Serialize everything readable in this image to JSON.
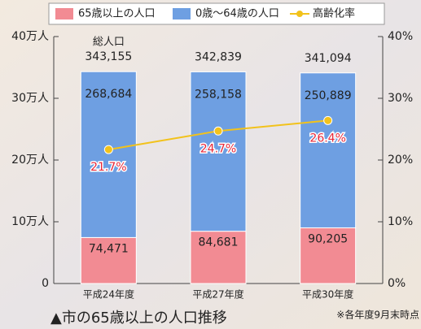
{
  "chart_data": {
    "type": "stacked-bar-line",
    "title": "▲市の65歳以上の人口推移",
    "note": "※各年度9月末時点",
    "categories": [
      "平成24年度",
      "平成27年度",
      "平成30年度"
    ],
    "series": [
      {
        "name": "65歳以上の人口",
        "color": "#f28b93",
        "values": [
          74471,
          84681,
          90205
        ],
        "value_labels": [
          "74,471",
          "84,681",
          "90,205"
        ]
      },
      {
        "name": "0歳～64歳の人口",
        "color": "#6e9fe2",
        "values": [
          268684,
          258158,
          250889
        ],
        "value_labels": [
          "268,684",
          "258,158",
          "250,889"
        ]
      },
      {
        "name": "高齢化率",
        "color": "#f2c21b",
        "axis": "y2",
        "values": [
          21.7,
          24.7,
          26.4
        ],
        "value_labels": [
          "21.7%",
          "24.7%",
          "26.4%"
        ]
      }
    ],
    "totals": {
      "label": "総人口",
      "values": [
        343155,
        342839,
        341094
      ],
      "value_labels": [
        "343,155",
        "342,839",
        "341,094"
      ]
    },
    "ylim": [
      0,
      400000
    ],
    "yticks": [
      {
        "value": 0,
        "label": "0"
      },
      {
        "value": 100000,
        "label": "10万人"
      },
      {
        "value": 200000,
        "label": "20万人"
      },
      {
        "value": 300000,
        "label": "30万人"
      },
      {
        "value": 400000,
        "label": "40万人"
      }
    ],
    "y2lim": [
      0,
      40
    ],
    "y2ticks": [
      {
        "value": 0,
        "label": "0%"
      },
      {
        "value": 10,
        "label": "10%"
      },
      {
        "value": 20,
        "label": "20%"
      },
      {
        "value": 30,
        "label": "30%"
      },
      {
        "value": 40,
        "label": "40%"
      }
    ]
  }
}
